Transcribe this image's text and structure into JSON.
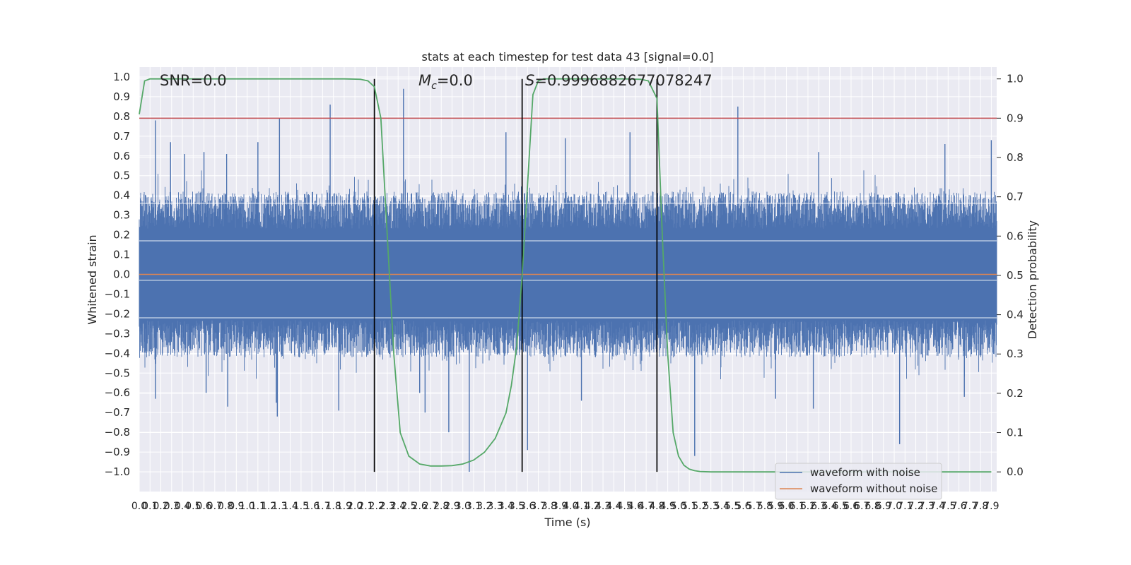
{
  "chart_data": {
    "type": "line",
    "title": "stats at each timestep for test data 43 [signal=0.0]",
    "xlabel": "Time (s)",
    "ylabel": "Whitened strain",
    "y2label": "Detection probability",
    "xlim": [
      0.0,
      7.95
    ],
    "ylim": [
      -1.1,
      1.05
    ],
    "y2lim": [
      -0.05,
      1.03
    ],
    "x_tick_step": 0.1,
    "y_tick_step": 0.1,
    "y2_tick_step": 0.1,
    "grid": true,
    "legend_position": "lower-right",
    "annotations": {
      "snr": "SNR=0.0",
      "mc_symbol": "M",
      "mc_sub": "c",
      "mc_value": "=0.0",
      "s_symbol": "S",
      "s_value": "=0.9996882677078247"
    },
    "threshold": {
      "axis": "right",
      "value": 0.9,
      "color": "#c44e52"
    },
    "vertical_markers": [
      2.18,
      3.55,
      4.8
    ],
    "series": [
      {
        "name": "waveform with noise",
        "axis": "left",
        "color": "#4c72b0",
        "summary": {
          "typical_amplitude": 0.42,
          "peak_max": 0.94,
          "peak_min": -1.0
        },
        "peaks": [
          [
            0.15,
            0.78
          ],
          [
            0.29,
            0.67
          ],
          [
            0.42,
            0.61
          ],
          [
            0.6,
            0.62
          ],
          [
            0.81,
            0.61
          ],
          [
            1.1,
            0.67
          ],
          [
            1.3,
            0.79
          ],
          [
            1.77,
            0.86
          ],
          [
            2.45,
            0.94
          ],
          [
            3.4,
            0.72
          ],
          [
            3.95,
            0.69
          ],
          [
            4.55,
            0.72
          ],
          [
            5.55,
            0.85
          ],
          [
            6.3,
            0.62
          ],
          [
            7.47,
            0.66
          ],
          [
            7.9,
            0.68
          ],
          [
            0.15,
            -0.63
          ],
          [
            0.62,
            -0.6
          ],
          [
            0.82,
            -0.67
          ],
          [
            1.27,
            -0.65
          ],
          [
            1.28,
            -0.72
          ],
          [
            1.85,
            -0.69
          ],
          [
            2.6,
            -0.6
          ],
          [
            2.65,
            -0.7
          ],
          [
            2.87,
            -0.8
          ],
          [
            3.06,
            -1.0
          ],
          [
            3.6,
            -0.89
          ],
          [
            4.1,
            -0.64
          ],
          [
            5.15,
            -0.92
          ],
          [
            5.9,
            -0.63
          ],
          [
            6.25,
            -0.68
          ],
          [
            7.05,
            -0.86
          ],
          [
            7.65,
            -0.62
          ]
        ]
      },
      {
        "name": "waveform without noise",
        "axis": "left",
        "color": "#dd8452",
        "x": [
          0.0,
          7.95
        ],
        "y": [
          0.0,
          0.0
        ]
      },
      {
        "name": "detection probability",
        "axis": "right",
        "color": "#55a868",
        "x": [
          0.0,
          0.05,
          0.1,
          0.15,
          0.5,
          1.0,
          1.5,
          1.9,
          2.05,
          2.12,
          2.18,
          2.24,
          2.3,
          2.36,
          2.42,
          2.5,
          2.6,
          2.7,
          2.8,
          2.9,
          3.0,
          3.1,
          3.2,
          3.3,
          3.4,
          3.45,
          3.5,
          3.55,
          3.6,
          3.65,
          3.7,
          3.75,
          3.8,
          4.0,
          4.5,
          4.65,
          4.72,
          4.8,
          4.85,
          4.9,
          4.95,
          5.0,
          5.05,
          5.1,
          5.15,
          5.2,
          5.3,
          5.5,
          6.0,
          7.0,
          7.9
        ],
        "y": [
          0.91,
          0.995,
          1.0,
          1.0,
          1.0,
          1.0,
          1.0,
          1.0,
          0.999,
          0.995,
          0.98,
          0.9,
          0.6,
          0.3,
          0.1,
          0.04,
          0.02,
          0.015,
          0.015,
          0.016,
          0.02,
          0.03,
          0.05,
          0.085,
          0.15,
          0.22,
          0.32,
          0.5,
          0.73,
          0.96,
          0.995,
          1.0,
          1.0,
          1.0,
          1.0,
          0.999,
          0.995,
          0.95,
          0.6,
          0.3,
          0.1,
          0.04,
          0.017,
          0.007,
          0.003,
          0.001,
          0.0,
          0.0,
          0.0,
          0.0,
          0.0
        ]
      }
    ]
  }
}
